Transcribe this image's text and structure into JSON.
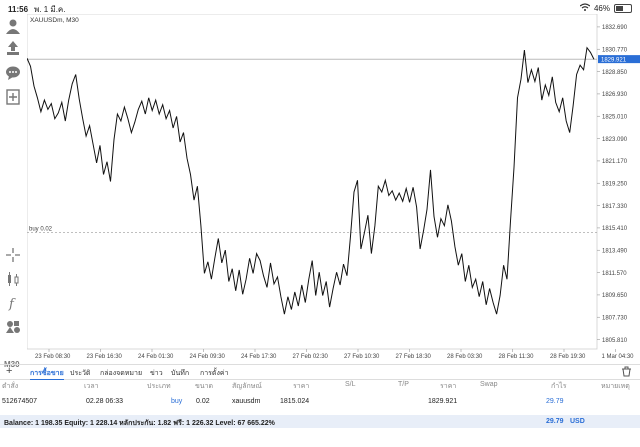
{
  "status": {
    "time": "11:56",
    "date": "พ. 1 มี.ค.",
    "battery": "46%"
  },
  "chart": {
    "symbol_label": "XAUUSDm, M30",
    "current_price_tag": "1829.921",
    "order_line_label": "buy 0.02",
    "left_edge_label": "M30"
  },
  "chart_data": {
    "type": "line",
    "symbol": "XAUUSDm",
    "timeframe": "M30",
    "x_ticks": [
      "23 Feb 08:30",
      "23 Feb 16:30",
      "24 Feb 01:30",
      "24 Feb 09:30",
      "24 Feb 17:30",
      "27 Feb 02:30",
      "27 Feb 10:30",
      "27 Feb 18:30",
      "28 Feb 03:30",
      "28 Feb 11:30",
      "28 Feb 19:30",
      "1 Mar 04:30"
    ],
    "y_ticks": [
      1832.69,
      1830.77,
      1828.85,
      1826.93,
      1825.01,
      1823.09,
      1821.17,
      1819.25,
      1817.33,
      1815.41,
      1813.49,
      1811.57,
      1809.65,
      1807.73,
      1805.81
    ],
    "ylim": [
      1805.0,
      1833.8
    ],
    "grid": false,
    "current_price": 1829.921,
    "order_line": 1815.024,
    "values": [
      1830.0,
      1829.3,
      1827.6,
      1826.6,
      1825.4,
      1826.4,
      1825.6,
      1826.1,
      1824.8,
      1825.3,
      1826.2,
      1824.6,
      1826.4,
      1827.8,
      1828.6,
      1826.5,
      1824.8,
      1823.3,
      1824.2,
      1822.6,
      1821.0,
      1822.5,
      1820.0,
      1821.1,
      1819.4,
      1823.0,
      1825.2,
      1824.6,
      1825.8,
      1824.8,
      1823.6,
      1824.5,
      1825.6,
      1826.3,
      1825.2,
      1826.6,
      1825.5,
      1826.4,
      1825.2,
      1826.0,
      1824.8,
      1825.5,
      1824.0,
      1825.0,
      1822.8,
      1823.6,
      1821.4,
      1820.0,
      1817.8,
      1819.0,
      1815.6,
      1811.5,
      1812.5,
      1811.0,
      1812.8,
      1814.5,
      1812.4,
      1813.5,
      1810.8,
      1811.9,
      1810.0,
      1811.8,
      1809.7,
      1811.0,
      1812.8,
      1811.5,
      1813.2,
      1812.6,
      1811.3,
      1810.3,
      1812.4,
      1810.6,
      1811.2,
      1809.5,
      1808.0,
      1809.5,
      1808.4,
      1809.9,
      1808.7,
      1810.5,
      1809.0,
      1811.0,
      1812.6,
      1809.6,
      1811.6,
      1809.6,
      1810.8,
      1808.6,
      1810.2,
      1811.6,
      1810.5,
      1812.3,
      1811.3,
      1814.7,
      1818.5,
      1819.5,
      1813.6,
      1815.0,
      1816.5,
      1813.2,
      1815.6,
      1819.0,
      1818.5,
      1819.5,
      1818.2,
      1818.6,
      1817.8,
      1818.4,
      1817.7,
      1818.8,
      1817.6,
      1818.9,
      1817.2,
      1813.6,
      1815.2,
      1817.0,
      1820.4,
      1816.4,
      1814.6,
      1816.2,
      1815.6,
      1817.4,
      1816.0,
      1813.8,
      1812.2,
      1813.2,
      1810.8,
      1812.2,
      1810.3,
      1811.0,
      1809.5,
      1810.8,
      1808.8,
      1810.2,
      1809.0,
      1808.0,
      1809.6,
      1812.2,
      1811.0,
      1816.0,
      1820.6,
      1826.6,
      1828.2,
      1830.7,
      1827.9,
      1829.0,
      1828.0,
      1829.2,
      1826.4,
      1827.7,
      1826.8,
      1828.4,
      1826.2,
      1825.4,
      1826.6,
      1824.6,
      1823.6,
      1825.9,
      1828.6,
      1829.4,
      1829.0,
      1830.9,
      1830.5,
      1829.9
    ]
  },
  "tabs": {
    "add": "+",
    "items": [
      "การซื้อขาย",
      "ประวัติ",
      "กล่องจดหมาย",
      "ข่าว",
      "บันทึก",
      "การตั้งค่า"
    ]
  },
  "columns": [
    "ตำสั่ง",
    "เวลา",
    "ประเภท",
    "ขนาด",
    "สัญลักษณ์",
    "ราคา",
    "S/L",
    "T/P",
    "ราคา",
    "Swap",
    "กำไร",
    "หมายเหตุ"
  ],
  "position": {
    "ticket": "512674507",
    "time": "02.28 06:33",
    "type": "buy",
    "size": "0.02",
    "symbol": "xauusdm",
    "open_price": "1815.024",
    "sl": "",
    "tp": "",
    "price": "1829.921",
    "swap": "",
    "profit": "29.79",
    "comment": ""
  },
  "balance": {
    "summary": "Balance: 1 198.35 Equity: 1 228.14 หลักประกัน: 1.82 ฟรี: 1 226.32 Level: 67 665.22%",
    "profit": "29.79",
    "currency": "USD"
  }
}
